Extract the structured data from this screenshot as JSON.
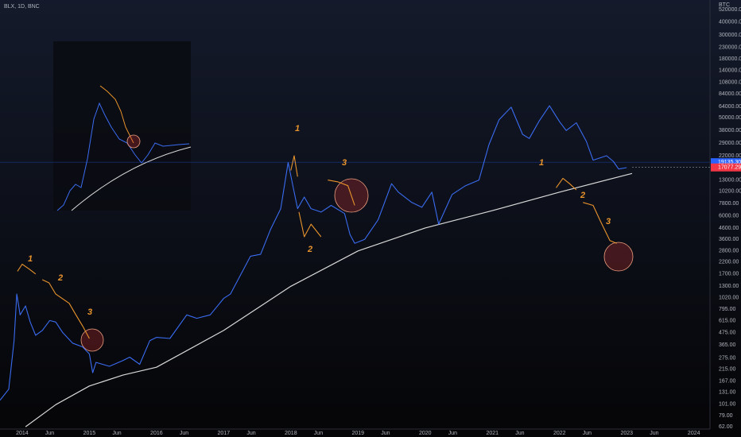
{
  "chart_data": {
    "type": "line",
    "title": "BLX, 1D, BNC",
    "currency": "BTC",
    "log_scale": true,
    "grid": false,
    "xlim": [
      2013.67,
      2024.24
    ],
    "ylim": [
      57,
      560000
    ],
    "xticks": [
      {
        "value": 2014.0,
        "label": "2014"
      },
      {
        "value": 2014.41,
        "label": "Jun"
      },
      {
        "value": 2015.0,
        "label": "2015"
      },
      {
        "value": 2015.41,
        "label": "Jun"
      },
      {
        "value": 2016.0,
        "label": "2016"
      },
      {
        "value": 2016.41,
        "label": "Jun"
      },
      {
        "value": 2017.0,
        "label": "2017"
      },
      {
        "value": 2017.41,
        "label": "Jun"
      },
      {
        "value": 2018.0,
        "label": "2018"
      },
      {
        "value": 2018.41,
        "label": "Jun"
      },
      {
        "value": 2019.0,
        "label": "2019"
      },
      {
        "value": 2019.41,
        "label": "Jun"
      },
      {
        "value": 2020.0,
        "label": "2020"
      },
      {
        "value": 2020.41,
        "label": "Jun"
      },
      {
        "value": 2021.0,
        "label": "2021"
      },
      {
        "value": 2021.41,
        "label": "Jun"
      },
      {
        "value": 2022.0,
        "label": "2022"
      },
      {
        "value": 2022.41,
        "label": "Jun"
      },
      {
        "value": 2023.0,
        "label": "2023"
      },
      {
        "value": 2023.41,
        "label": "Jun"
      },
      {
        "value": 2024.0,
        "label": "2024"
      }
    ],
    "yticks": [
      {
        "value": 520000,
        "label": "520000.00"
      },
      {
        "value": 400000,
        "label": "400000.00"
      },
      {
        "value": 300000,
        "label": "300000.00"
      },
      {
        "value": 230000,
        "label": "230000.00"
      },
      {
        "value": 180000,
        "label": "180000.00"
      },
      {
        "value": 140000,
        "label": "140000.00"
      },
      {
        "value": 108000,
        "label": "108000.00"
      },
      {
        "value": 84000,
        "label": "84000.00"
      },
      {
        "value": 64000,
        "label": "64000.00"
      },
      {
        "value": 50000,
        "label": "50000.00"
      },
      {
        "value": 38000,
        "label": "38000.00"
      },
      {
        "value": 29000,
        "label": "29000.00"
      },
      {
        "value": 22000,
        "label": "22000.00"
      },
      {
        "value": 13000,
        "label": "13000.00"
      },
      {
        "value": 10200,
        "label": "10200.00"
      },
      {
        "value": 7800,
        "label": "7800.00"
      },
      {
        "value": 6000,
        "label": "6000.00"
      },
      {
        "value": 4600,
        "label": "4600.00"
      },
      {
        "value": 3600,
        "label": "3600.00"
      },
      {
        "value": 2800,
        "label": "2800.00"
      },
      {
        "value": 2200,
        "label": "2200.00"
      },
      {
        "value": 1700,
        "label": "1700.00"
      },
      {
        "value": 1300,
        "label": "1300.00"
      },
      {
        "value": 1020,
        "label": "1020.00"
      },
      {
        "value": 795,
        "label": "795.00"
      },
      {
        "value": 615,
        "label": "615.00"
      },
      {
        "value": 475,
        "label": "475.00"
      },
      {
        "value": 365,
        "label": "365.00"
      },
      {
        "value": 275,
        "label": "275.00"
      },
      {
        "value": 215,
        "label": "215.00"
      },
      {
        "value": 167,
        "label": "167.00"
      },
      {
        "value": 131,
        "label": "131.00"
      },
      {
        "value": 101,
        "label": "101.00"
      },
      {
        "value": 79,
        "label": "79.00"
      },
      {
        "value": 62,
        "label": "62.00"
      }
    ],
    "last_price": {
      "value": 19135.3,
      "label": "19135.30",
      "color": "#2962ff"
    },
    "projected_price": {
      "value": 17077.29,
      "label": "17077.29",
      "color": "#f23645"
    },
    "price": {
      "color": "#3a6cf0",
      "x": [
        2013.67,
        2013.8,
        2013.88,
        2013.92,
        2013.97,
        2014.05,
        2014.12,
        2014.2,
        2014.3,
        2014.41,
        2014.5,
        2014.6,
        2014.75,
        2014.9,
        2015.0,
        2015.05,
        2015.1,
        2015.3,
        2015.5,
        2015.6,
        2015.75,
        2015.9,
        2016.0,
        2016.2,
        2016.45,
        2016.6,
        2016.8,
        2017.0,
        2017.1,
        2017.4,
        2017.55,
        2017.7,
        2017.85,
        2017.96,
        2018.05,
        2018.1,
        2018.2,
        2018.3,
        2018.45,
        2018.6,
        2018.8,
        2018.88,
        2018.95,
        2019.1,
        2019.3,
        2019.5,
        2019.6,
        2019.8,
        2019.95,
        2020.1,
        2020.2,
        2020.4,
        2020.6,
        2020.8,
        2020.95,
        2021.1,
        2021.28,
        2021.45,
        2021.55,
        2021.7,
        2021.85,
        2022.0,
        2022.1,
        2022.25,
        2022.4,
        2022.5,
        2022.7,
        2022.8,
        2022.88,
        2023.0
      ],
      "values": [
        110,
        140,
        400,
        1100,
        700,
        850,
        600,
        450,
        500,
        620,
        600,
        480,
        380,
        350,
        300,
        200,
        250,
        230,
        260,
        280,
        240,
        400,
        430,
        420,
        700,
        650,
        700,
        1000,
        1100,
        2500,
        2600,
        4500,
        7000,
        19000,
        10000,
        7000,
        9000,
        7000,
        6500,
        7500,
        6300,
        4000,
        3300,
        3600,
        5500,
        12000,
        10000,
        8000,
        7200,
        10000,
        5000,
        9500,
        11500,
        13000,
        28000,
        48000,
        63000,
        35000,
        32000,
        47000,
        65000,
        46000,
        38000,
        45000,
        30000,
        20000,
        22000,
        19500,
        16500,
        17000
      ]
    },
    "fractal": {
      "color": "#e8932c",
      "x": [
        2013.93,
        2014.0,
        2014.1,
        2014.2,
        2014.25,
        2014.3,
        2014.4,
        2014.5,
        2014.7,
        2014.8,
        2014.9,
        2015.0,
        2017.99,
        2018.0,
        2018.05,
        2018.1,
        2018.11,
        2018.12,
        2018.2,
        2018.3,
        2018.45,
        2018.5,
        2018.55,
        2018.7,
        2018.85,
        2018.95,
        2021.9,
        2021.95,
        2022.05,
        2022.15,
        2022.25,
        2022.3,
        2022.35,
        2022.5,
        2022.6,
        2022.75,
        2022.85
      ],
      "values": [
        1800,
        2100,
        1900,
        1700,
        null,
        1500,
        1400,
        1100,
        900,
        700,
        550,
        420,
        null,
        16000,
        22000,
        14000,
        null,
        6500,
        3800,
        5000,
        3800,
        null,
        13000,
        12500,
        11500,
        7500,
        null,
        11000,
        13500,
        12000,
        10500,
        null,
        8000,
        7500,
        5500,
        3500,
        3300
      ]
    },
    "curve": {
      "color": "#d8d8d8",
      "x": [
        2014.05,
        2014.5,
        2015.0,
        2015.5,
        2016.0,
        2017.0,
        2018.0,
        2019.0,
        2020.0,
        2021.0,
        2022.0,
        2023.08
      ],
      "values": [
        62,
        100,
        150,
        190,
        225,
        500,
        1300,
        2800,
        4600,
        6700,
        10000,
        15000
      ]
    },
    "annotations": [
      "1",
      "2",
      "3",
      "1",
      "2",
      "3",
      "1",
      "2",
      "3"
    ]
  }
}
